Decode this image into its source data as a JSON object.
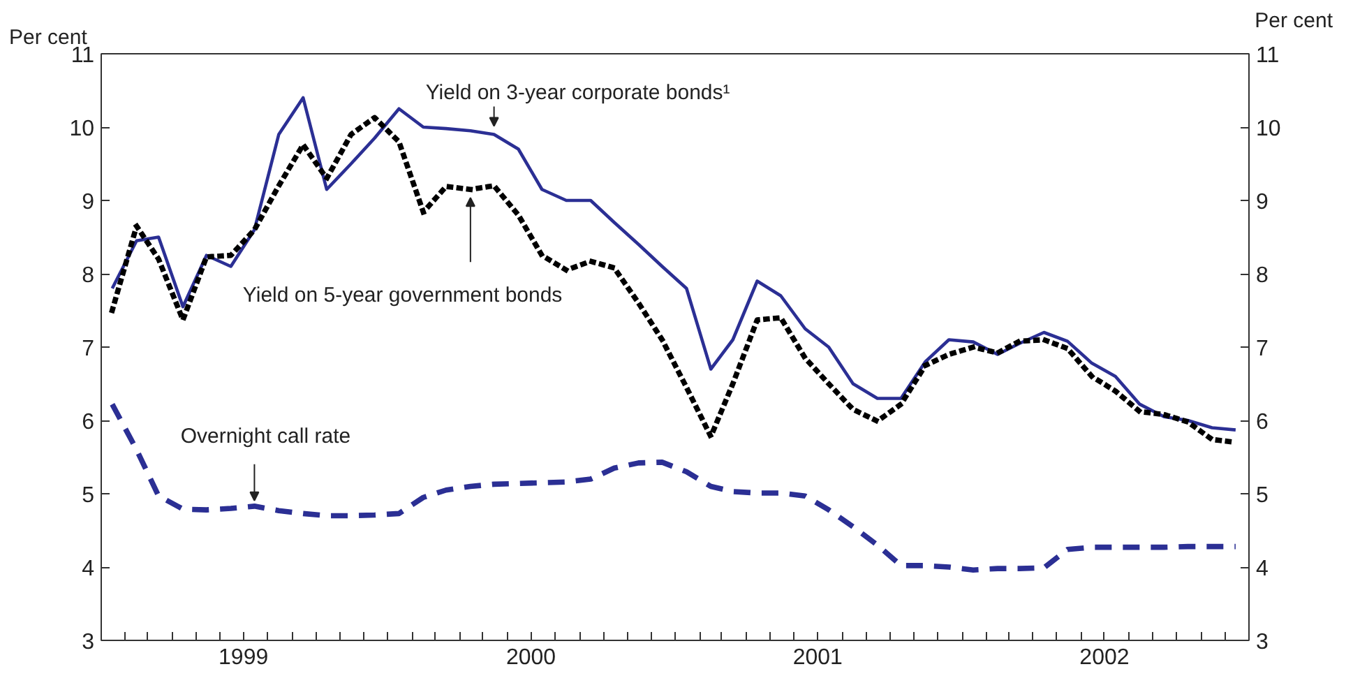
{
  "chart_data": {
    "type": "line",
    "ylabel": "Per cent",
    "y2label": "Per cent",
    "x": [
      "1999-01-15",
      "1999-02-15",
      "1999-03-15",
      "1999-04-15",
      "1999-05-15",
      "1999-06-15",
      "1999-07-15",
      "1999-08-15",
      "1999-09-15",
      "1999-10-15",
      "1999-11-15",
      "1999-12-15",
      "2000-01-15",
      "2000-02-15",
      "2000-03-15",
      "2000-04-15",
      "2000-05-15",
      "2000-06-15",
      "2000-07-15",
      "2000-08-15",
      "2000-09-15",
      "2000-10-15",
      "2000-11-15",
      "2000-12-15",
      "2001-01-15",
      "2001-02-15",
      "2001-03-15",
      "2001-04-15",
      "2001-05-15",
      "2001-06-15",
      "2001-07-15",
      "2001-08-15",
      "2001-09-15",
      "2001-10-15",
      "2001-11-15",
      "2001-12-15",
      "2002-01-15",
      "2002-02-15",
      "2002-03-15",
      "2002-04-15",
      "2002-05-15",
      "2002-06-15",
      "2002-07-15",
      "2002-08-15",
      "2002-09-15",
      "2002-10-15",
      "2002-11-15",
      "2002-12-15"
    ],
    "series": [
      {
        "name": "Yield on 3-year corporate bonds¹",
        "color": "#2b2f94",
        "line_style": "solid",
        "values": [
          7.8,
          8.45,
          8.5,
          7.55,
          8.25,
          8.1,
          8.6,
          9.9,
          10.4,
          9.15,
          9.5,
          9.85,
          10.25,
          10.0,
          9.98,
          9.95,
          9.9,
          9.7,
          9.15,
          9.0,
          9.0,
          8.7,
          8.4,
          8.1,
          7.8,
          6.7,
          7.1,
          7.9,
          7.7,
          7.25,
          7.0,
          6.5,
          6.3,
          6.3,
          6.8,
          7.1,
          7.07,
          6.9,
          7.05,
          7.2,
          7.08,
          6.78,
          6.6,
          6.22,
          6.05,
          6.0,
          5.9,
          5.87
        ]
      },
      {
        "name": "Yield on 5-year government bonds",
        "color": "#000000",
        "line_style": "dotted",
        "values": [
          7.5,
          8.65,
          8.2,
          7.37,
          8.23,
          8.25,
          8.6,
          9.2,
          9.76,
          9.3,
          9.9,
          10.13,
          9.8,
          8.84,
          9.19,
          9.15,
          9.2,
          8.8,
          8.25,
          8.05,
          8.17,
          8.08,
          7.6,
          7.1,
          6.45,
          5.78,
          6.5,
          7.37,
          7.4,
          6.85,
          6.5,
          6.15,
          5.99,
          6.22,
          6.75,
          6.9,
          7.0,
          6.92,
          7.08,
          7.1,
          6.98,
          6.6,
          6.4,
          6.12,
          6.08,
          5.98,
          5.74,
          5.7
        ]
      },
      {
        "name": "Overnight call rate",
        "color": "#2b2f94",
        "line_style": "dashed",
        "values": [
          6.22,
          5.6,
          4.97,
          4.79,
          4.78,
          4.8,
          4.83,
          4.77,
          4.73,
          4.7,
          4.7,
          4.71,
          4.73,
          4.95,
          5.05,
          5.1,
          5.13,
          5.14,
          5.15,
          5.16,
          5.2,
          5.35,
          5.42,
          5.43,
          5.3,
          5.1,
          5.03,
          5.01,
          5.01,
          4.97,
          4.78,
          4.55,
          4.3,
          4.02,
          4.02,
          4.0,
          3.96,
          3.98,
          3.98,
          3.99,
          4.24,
          4.27,
          4.27,
          4.27,
          4.27,
          4.28,
          4.28,
          4.28
        ]
      }
    ],
    "xlim": [
      "1999-01-01",
      "2003-01-01"
    ],
    "xticks": [
      {
        "value": "1999-01-01",
        "label": null
      },
      {
        "value": "1999-02-01",
        "label": null
      },
      {
        "value": "1999-03-01",
        "label": null
      },
      {
        "value": "1999-04-01",
        "label": null
      },
      {
        "value": "1999-05-01",
        "label": null
      },
      {
        "value": "1999-06-01",
        "label": null
      },
      {
        "value": "1999-07-01",
        "label": "1999"
      },
      {
        "value": "1999-08-01",
        "label": null
      },
      {
        "value": "1999-09-01",
        "label": null
      },
      {
        "value": "1999-10-01",
        "label": null
      },
      {
        "value": "1999-11-01",
        "label": null
      },
      {
        "value": "1999-12-01",
        "label": null
      },
      {
        "value": "2000-01-01",
        "label": null
      },
      {
        "value": "2000-02-01",
        "label": null
      },
      {
        "value": "2000-03-01",
        "label": null
      },
      {
        "value": "2000-04-01",
        "label": null
      },
      {
        "value": "2000-05-01",
        "label": null
      },
      {
        "value": "2000-06-01",
        "label": null
      },
      {
        "value": "2000-07-01",
        "label": "2000"
      },
      {
        "value": "2000-08-01",
        "label": null
      },
      {
        "value": "2000-09-01",
        "label": null
      },
      {
        "value": "2000-10-01",
        "label": null
      },
      {
        "value": "2000-11-01",
        "label": null
      },
      {
        "value": "2000-12-01",
        "label": null
      },
      {
        "value": "2001-01-01",
        "label": null
      },
      {
        "value": "2001-02-01",
        "label": null
      },
      {
        "value": "2001-03-01",
        "label": null
      },
      {
        "value": "2001-04-01",
        "label": null
      },
      {
        "value": "2001-05-01",
        "label": null
      },
      {
        "value": "2001-06-01",
        "label": null
      },
      {
        "value": "2001-07-01",
        "label": "2001"
      },
      {
        "value": "2001-08-01",
        "label": null
      },
      {
        "value": "2001-09-01",
        "label": null
      },
      {
        "value": "2001-10-01",
        "label": null
      },
      {
        "value": "2001-11-01",
        "label": null
      },
      {
        "value": "2001-12-01",
        "label": null
      },
      {
        "value": "2002-01-01",
        "label": null
      },
      {
        "value": "2002-02-01",
        "label": null
      },
      {
        "value": "2002-03-01",
        "label": null
      },
      {
        "value": "2002-04-01",
        "label": null
      },
      {
        "value": "2002-05-01",
        "label": null
      },
      {
        "value": "2002-06-01",
        "label": null
      },
      {
        "value": "2002-07-01",
        "label": "2002"
      },
      {
        "value": "2002-08-01",
        "label": null
      },
      {
        "value": "2002-09-01",
        "label": null
      },
      {
        "value": "2002-10-01",
        "label": null
      },
      {
        "value": "2002-11-01",
        "label": null
      },
      {
        "value": "2002-12-01",
        "label": null
      },
      {
        "value": "2003-01-01",
        "label": null
      }
    ],
    "ylim": [
      3,
      11
    ],
    "yticks": [
      3,
      4,
      5,
      6,
      7,
      8,
      9,
      10,
      11
    ],
    "y2lim": [
      3,
      11
    ],
    "y2ticks": [
      3,
      4,
      5,
      6,
      7,
      8,
      9,
      10,
      11
    ],
    "grid": false
  }
}
